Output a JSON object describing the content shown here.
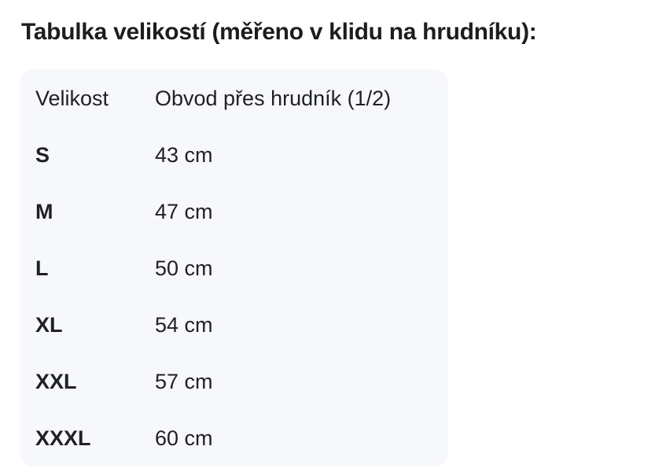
{
  "page": {
    "title": "Tabulka velikostí (měřeno v klidu na hrudníku):"
  },
  "table": {
    "headers": {
      "size": "Velikost",
      "measurement": "Obvod přes hrudník (1/2)"
    },
    "rows": [
      {
        "size": "S",
        "value": "43 cm"
      },
      {
        "size": "M",
        "value": "47 cm"
      },
      {
        "size": "L",
        "value": "50 cm"
      },
      {
        "size": "XL",
        "value": "54 cm"
      },
      {
        "size": "XXL",
        "value": "57 cm"
      },
      {
        "size": "XXXL",
        "value": "60 cm"
      }
    ]
  },
  "colors": {
    "page_background": "#ffffff",
    "panel_background": "#f7f8fb",
    "text": "#202124",
    "title_text": "#1d1d1f"
  }
}
